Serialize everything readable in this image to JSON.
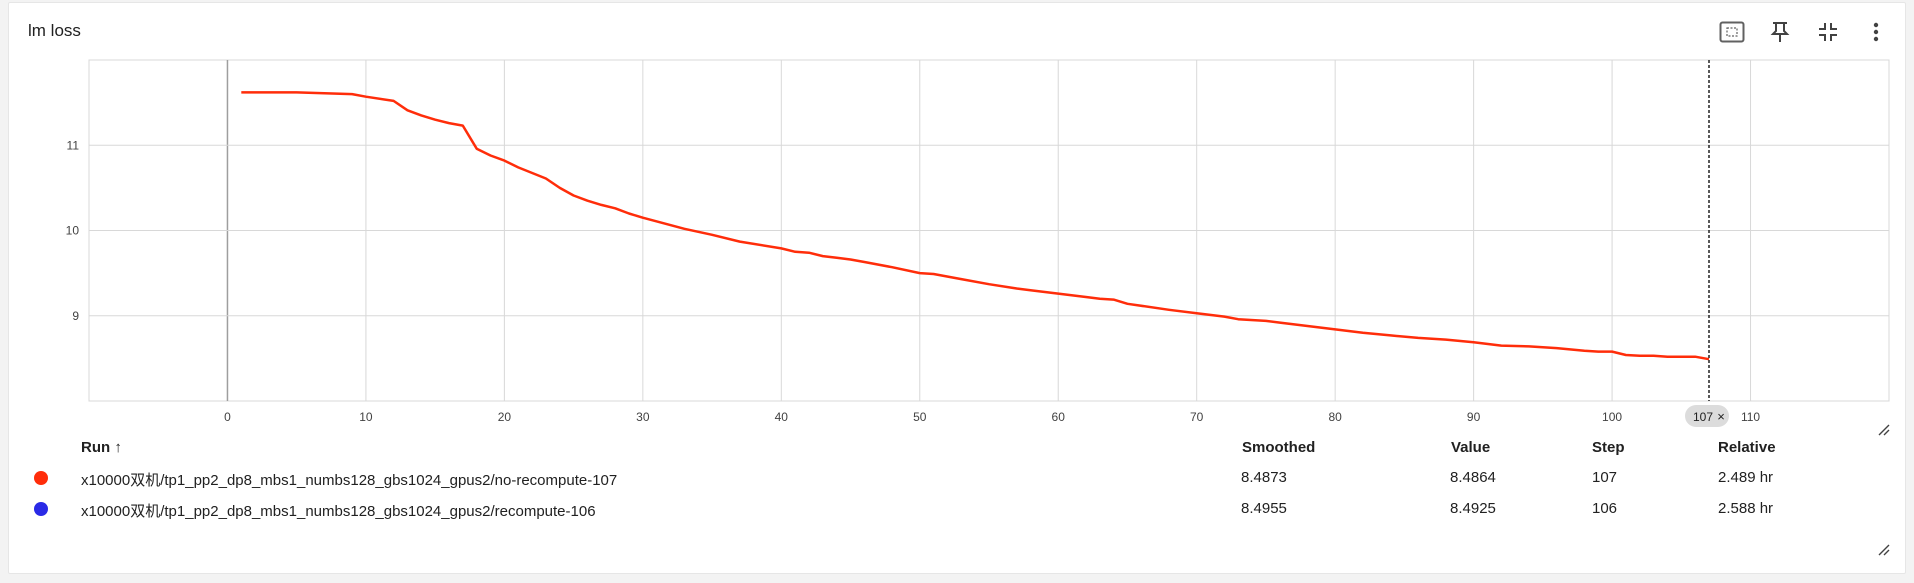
{
  "card": {
    "title": "lm loss"
  },
  "toolbar": [
    {
      "name": "fit-domain-icon"
    },
    {
      "name": "pin-icon"
    },
    {
      "name": "collapse-icon"
    },
    {
      "name": "more-vert-icon"
    }
  ],
  "chart_data": {
    "type": "line",
    "title": "lm loss",
    "xlabel": "",
    "ylabel": "",
    "xlim": [
      -10,
      120
    ],
    "ylim": [
      8,
      12
    ],
    "x_ticks": [
      "0",
      "10",
      "20",
      "30",
      "40",
      "50",
      "60",
      "70",
      "80",
      "90",
      "100",
      "110"
    ],
    "y_ticks": [
      "9",
      "10",
      "11"
    ],
    "grid": true,
    "cursor": {
      "step": 107,
      "label": "107"
    },
    "series": [
      {
        "color": "#ff2d0a",
        "x": [
          1,
          5,
          9,
          10,
          12,
          13,
          14,
          15,
          16,
          17,
          18,
          19,
          20,
          21,
          23,
          24,
          25,
          26,
          27,
          28,
          29,
          30,
          33,
          35,
          37,
          40,
          41,
          42,
          43,
          44,
          45,
          46,
          48,
          50,
          51,
          53,
          55,
          57,
          58,
          60,
          62,
          63,
          64,
          65,
          68,
          70,
          72,
          73,
          75,
          76,
          78,
          80,
          82,
          84,
          86,
          88,
          90,
          92,
          94,
          96,
          98,
          99,
          100,
          101,
          102,
          103,
          104,
          106,
          107
        ],
        "y": [
          11.62,
          11.62,
          11.6,
          11.57,
          11.52,
          11.41,
          11.35,
          11.3,
          11.26,
          11.23,
          10.96,
          10.88,
          10.82,
          10.74,
          10.61,
          10.5,
          10.41,
          10.35,
          10.3,
          10.26,
          10.2,
          10.15,
          10.02,
          9.95,
          9.87,
          9.79,
          9.75,
          9.74,
          9.7,
          9.68,
          9.66,
          9.63,
          9.57,
          9.5,
          9.49,
          9.43,
          9.37,
          9.32,
          9.3,
          9.26,
          9.22,
          9.2,
          9.19,
          9.14,
          9.07,
          9.03,
          8.99,
          8.96,
          8.94,
          8.92,
          8.88,
          8.84,
          8.8,
          8.77,
          8.74,
          8.72,
          8.69,
          8.65,
          8.64,
          8.62,
          8.59,
          8.58,
          8.58,
          8.54,
          8.53,
          8.53,
          8.52,
          8.52,
          8.49
        ]
      }
    ]
  },
  "table": {
    "headers": {
      "run": "Run ↑",
      "smoothed": "Smoothed",
      "value": "Value",
      "step": "Step",
      "relative": "Relative"
    },
    "rows": [
      {
        "color": "#ff2d0a",
        "run": "x10000双机/tp1_pp2_dp8_mbs1_numbs128_gbs1024_gpus2/no-recompute-107",
        "smoothed": "8.4873",
        "value": "8.4864",
        "step": "107",
        "relative": "2.489 hr"
      },
      {
        "color": "#2a2ae6",
        "run": "x10000双机/tp1_pp2_dp8_mbs1_numbs128_gbs1024_gpus2/recompute-106",
        "smoothed": "8.4955",
        "value": "8.4925",
        "step": "106",
        "relative": "2.588 hr"
      }
    ]
  }
}
